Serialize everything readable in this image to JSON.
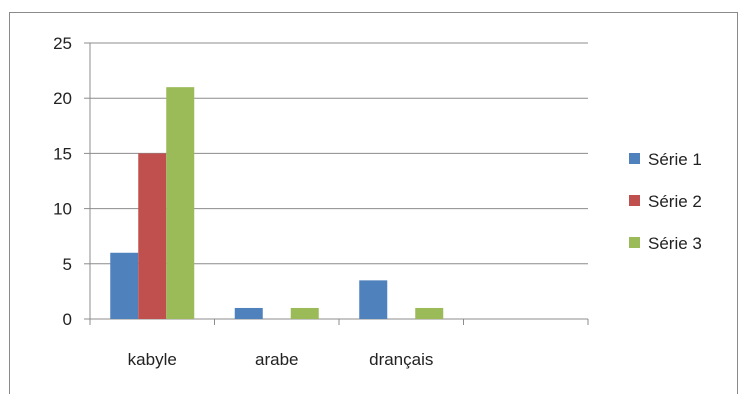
{
  "chart_data": {
    "type": "bar",
    "categories": [
      "kabyle",
      "arabe",
      "drançais",
      ""
    ],
    "series": [
      {
        "name": "Série 1",
        "values": [
          6,
          1,
          3.5,
          null
        ],
        "color": "#4f81bd"
      },
      {
        "name": "Série 2",
        "values": [
          15,
          null,
          null,
          null
        ],
        "color": "#c0504d"
      },
      {
        "name": "Série 3",
        "values": [
          21,
          1,
          1,
          null
        ],
        "color": "#9bbb59"
      }
    ],
    "ylim": [
      0,
      25
    ],
    "yticks": [
      "0",
      "5",
      "10",
      "15",
      "20",
      "25"
    ],
    "grid": true,
    "legend": "right"
  }
}
